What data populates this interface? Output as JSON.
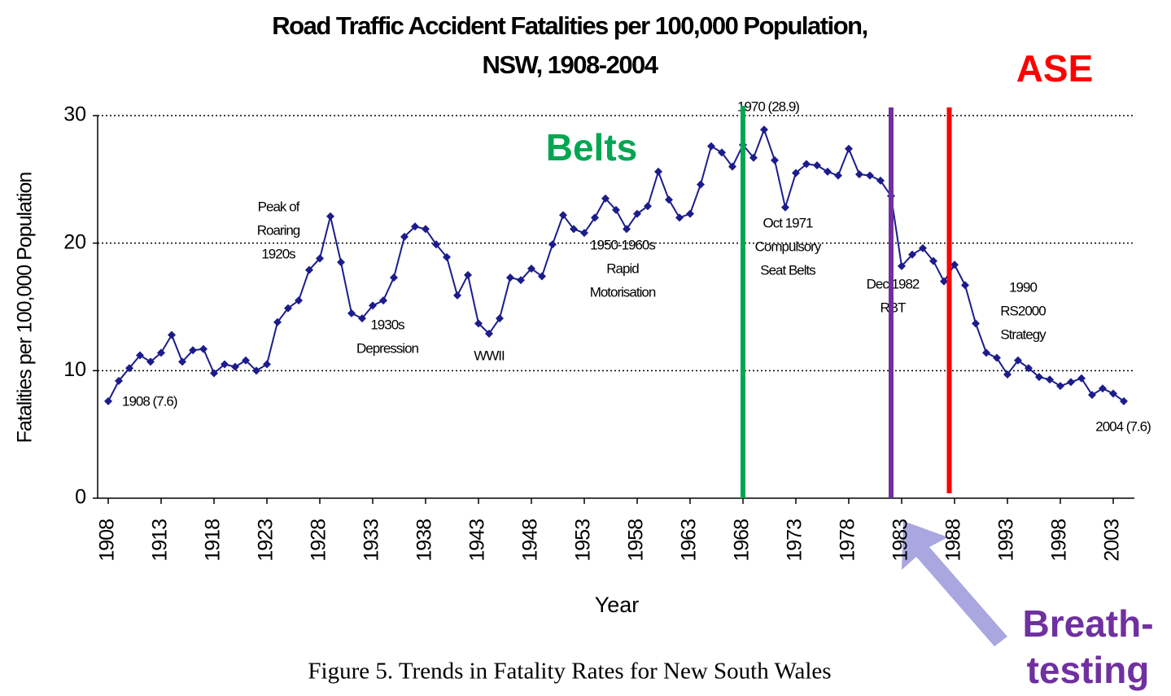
{
  "chart_data": {
    "type": "line",
    "title": [
      "Road Traffic Accident Fatalities per 100,000 Population,",
      "NSW, 1908-2004"
    ],
    "x_label": "Year",
    "y_label": "Fatalities per 100,000 Population",
    "x": [
      1908,
      1909,
      1910,
      1911,
      1912,
      1913,
      1914,
      1915,
      1916,
      1917,
      1918,
      1919,
      1920,
      1921,
      1922,
      1923,
      1924,
      1925,
      1926,
      1927,
      1928,
      1929,
      1930,
      1931,
      1932,
      1933,
      1934,
      1935,
      1936,
      1937,
      1938,
      1939,
      1940,
      1941,
      1942,
      1943,
      1944,
      1945,
      1946,
      1947,
      1948,
      1949,
      1950,
      1951,
      1952,
      1953,
      1954,
      1955,
      1956,
      1957,
      1958,
      1959,
      1960,
      1961,
      1962,
      1963,
      1964,
      1965,
      1966,
      1967,
      1968,
      1969,
      1970,
      1971,
      1972,
      1973,
      1974,
      1975,
      1976,
      1977,
      1978,
      1979,
      1980,
      1981,
      1982,
      1983,
      1984,
      1985,
      1986,
      1987,
      1988,
      1989,
      1990,
      1991,
      1992,
      1993,
      1994,
      1995,
      1996,
      1997,
      1998,
      1999,
      2000,
      2001,
      2002,
      2003,
      2004
    ],
    "values": [
      7.6,
      9.2,
      10.2,
      11.2,
      10.7,
      11.4,
      12.8,
      10.7,
      11.6,
      11.7,
      9.8,
      10.5,
      10.3,
      10.8,
      10.0,
      10.5,
      13.8,
      14.9,
      15.5,
      17.9,
      18.8,
      22.1,
      18.5,
      14.5,
      14.1,
      15.1,
      15.5,
      17.3,
      20.5,
      21.3,
      21.1,
      19.9,
      18.9,
      15.9,
      17.5,
      13.7,
      12.9,
      14.1,
      17.3,
      17.1,
      18.0,
      17.4,
      19.9,
      22.2,
      21.1,
      20.8,
      22.0,
      23.5,
      22.6,
      21.1,
      22.3,
      22.9,
      25.6,
      23.4,
      22.0,
      22.3,
      24.6,
      27.6,
      27.1,
      26.0,
      27.7,
      26.7,
      28.9,
      26.5,
      22.8,
      25.5,
      26.2,
      26.1,
      25.6,
      25.3,
      27.4,
      25.4,
      25.3,
      24.9,
      23.7,
      18.2,
      19.1,
      19.6,
      18.6,
      17.0,
      18.3,
      16.7,
      13.7,
      11.4,
      11.0,
      9.7,
      10.8,
      10.2,
      9.5,
      9.3,
      8.8,
      9.1,
      9.4,
      8.1,
      8.6,
      8.2,
      7.6
    ],
    "color": "#1c1c8c",
    "xlim": [
      1907,
      2005
    ],
    "xticks": [
      1908,
      1913,
      1918,
      1923,
      1928,
      1933,
      1938,
      1943,
      1948,
      1953,
      1958,
      1963,
      1968,
      1973,
      1978,
      1983,
      1988,
      1993,
      1998,
      2003
    ],
    "ylim": [
      0,
      30
    ],
    "yticks": [
      0,
      10,
      20,
      30
    ],
    "grid": true,
    "annotations": [
      [
        "1970 (28.9)"
      ],
      [
        "Peak of",
        "Roaring",
        "1920s"
      ],
      [
        "1930s",
        "Depression"
      ],
      [
        "WWII"
      ],
      [
        "1950-1960s",
        "Rapid",
        "Motorisation"
      ],
      [
        "Oct 1971",
        "Compulsory",
        "Seat Belts"
      ],
      [
        "Dec 1982",
        "RBT"
      ],
      [
        "1990",
        "RS2000",
        "Strategy"
      ],
      [
        "1908 (7.6)"
      ],
      [
        "2004 (7.6)"
      ]
    ],
    "markers": [
      {
        "label": [
          "Belts"
        ],
        "x": 1968,
        "color": "#00a651"
      },
      {
        "label": [
          "Breath-",
          "testing"
        ],
        "x": 1982,
        "color": "#7030a0"
      },
      {
        "label": [
          "ASE"
        ],
        "x": 1987.5,
        "color": "#ff0000"
      }
    ],
    "caption": "Figure 5. Trends in Fatality Rates for New South Wales"
  }
}
